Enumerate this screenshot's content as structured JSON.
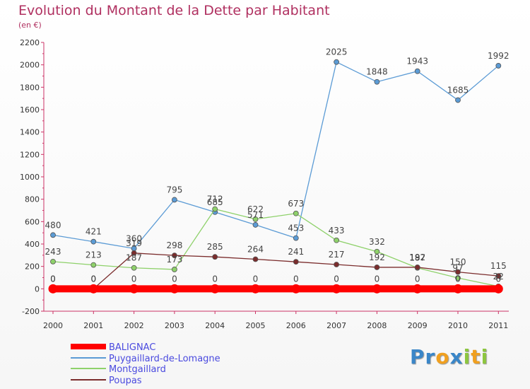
{
  "title": "Evolution du Montant de la Dette par Habitant",
  "subtitle": "(en €)",
  "brand": {
    "logo_letters": [
      {
        "ch": "P",
        "color": "#3a86c8"
      },
      {
        "ch": "r",
        "color": "#3a86c8"
      },
      {
        "ch": "o",
        "color": "#f0a020"
      },
      {
        "ch": "x",
        "color": "#3a86c8"
      },
      {
        "ch": "i",
        "color": "#8dc63f"
      },
      {
        "ch": "t",
        "color": "#f0a020"
      },
      {
        "ch": "i",
        "color": "#8dc63f"
      }
    ]
  },
  "chart_data": {
    "type": "line",
    "title": "Evolution du Montant de la Dette par Habitant",
    "subtitle": "(en €)",
    "xlabel": "",
    "ylabel": "",
    "x": [
      "2000",
      "2001",
      "2002",
      "2003",
      "2004",
      "2005",
      "2006",
      "2007",
      "2008",
      "2009",
      "2010",
      "2011"
    ],
    "ylim": [
      -200,
      2200
    ],
    "yticks": [
      -200,
      0,
      200,
      400,
      600,
      800,
      1000,
      1200,
      1400,
      1600,
      1800,
      2000,
      2200
    ],
    "grid": false,
    "legend": "bottom-left",
    "series": [
      {
        "name": "BALIGNAC",
        "color": "#ff0000",
        "values": [
          0,
          0,
          0,
          0,
          0,
          0,
          0,
          0,
          0,
          0,
          0,
          0
        ],
        "labels": [
          "0",
          "0",
          "0",
          "0",
          "0",
          "0",
          "0",
          "0",
          "0",
          "0",
          "0",
          "0"
        ]
      },
      {
        "name": "Puygaillard-de-Lomagne",
        "color": "#5b9bd5",
        "values": [
          480,
          421,
          360,
          795,
          685,
          571,
          453,
          2025,
          1848,
          1943,
          1685,
          1992
        ],
        "labels": [
          "480",
          "421",
          "360",
          "795",
          "685",
          "571",
          "453",
          "2025",
          "1848",
          "1943",
          "1685",
          "1992"
        ]
      },
      {
        "name": "Montgaillard",
        "color": "#8ed16a",
        "values": [
          243,
          213,
          187,
          173,
          712,
          622,
          673,
          433,
          332,
          187,
          97,
          22
        ],
        "labels": [
          "243",
          "213",
          "187",
          "173",
          "712",
          "622",
          "673",
          "433",
          "332",
          "187",
          "97",
          "22"
        ]
      },
      {
        "name": "Poupas",
        "color": "#7b2d2d",
        "values": [
          0,
          0,
          319,
          298,
          285,
          264,
          241,
          217,
          192,
          192,
          150,
          115
        ],
        "labels": [
          "0",
          "0",
          "319",
          "298",
          "285",
          "264",
          "241",
          "217",
          "192",
          "192",
          "150",
          "115"
        ]
      }
    ]
  }
}
